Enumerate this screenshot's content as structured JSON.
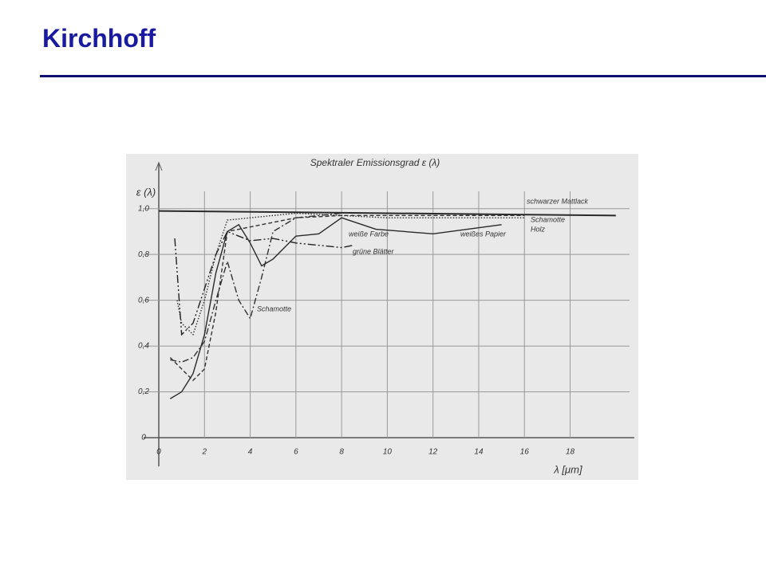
{
  "slide_title": "Kirchhoff",
  "chart_data": {
    "type": "line",
    "title": "Spektraler Emissionsgrad ε (λ)",
    "x_label": "λ [μm]",
    "y_label": "ε (λ)",
    "xlim": [
      0,
      20.6
    ],
    "ylim": [
      0,
      1.18
    ],
    "xticks": [
      0,
      2,
      4,
      6,
      8,
      10,
      12,
      14,
      16,
      18
    ],
    "yticks": [
      0,
      {
        "value": 0.2,
        "label": "0,2"
      },
      {
        "value": 0.4,
        "label": "0,4"
      },
      {
        "value": 0.6,
        "label": "0,6"
      },
      {
        "value": 0.8,
        "label": "0,8"
      },
      {
        "value": 1,
        "label": "1,0"
      }
    ],
    "grid": true,
    "series": [
      {
        "name": "schwarzer Mattlack",
        "color": "#2a2a2a",
        "dash": "",
        "x": [
          0,
          20
        ],
        "values": [
          0.99,
          0.97
        ]
      },
      {
        "name": "Schamotte",
        "color": "#333333",
        "dash": "8 3 2 3",
        "x": [
          0.5,
          1,
          1.5,
          2,
          2.5,
          3,
          3.5,
          4,
          4.5,
          5,
          6,
          8
        ],
        "values": [
          0.34,
          0.33,
          0.35,
          0.42,
          0.6,
          0.77,
          0.6,
          0.52,
          0.7,
          0.9,
          0.96,
          0.98
        ]
      },
      {
        "name": "Holz",
        "color": "#333333",
        "dash": "5 3",
        "x": [
          0.5,
          1,
          1.5,
          2,
          2.5,
          3,
          4,
          5,
          6,
          8,
          10,
          16
        ],
        "values": [
          0.35,
          0.3,
          0.25,
          0.3,
          0.55,
          0.9,
          0.92,
          0.94,
          0.96,
          0.97,
          0.97,
          0.97
        ]
      },
      {
        "name": "weiße Farbe",
        "color": "#333333",
        "dash": "1.5 2",
        "x": [
          0.8,
          1,
          1.5,
          2,
          2.5,
          3,
          4,
          5,
          6,
          8,
          10,
          16
        ],
        "values": [
          0.6,
          0.5,
          0.45,
          0.6,
          0.8,
          0.95,
          0.96,
          0.97,
          0.98,
          0.97,
          0.96,
          0.96
        ]
      },
      {
        "name": "weißes Papier",
        "color": "#2a2a2a",
        "dash": "",
        "x": [
          0.5,
          1,
          1.5,
          2,
          2.5,
          3,
          3.5,
          4,
          4.5,
          5,
          6,
          7,
          8,
          9.5,
          12,
          15
        ],
        "values": [
          0.17,
          0.2,
          0.28,
          0.45,
          0.72,
          0.9,
          0.93,
          0.85,
          0.75,
          0.78,
          0.88,
          0.89,
          0.96,
          0.91,
          0.89,
          0.93
        ]
      },
      {
        "name": "grüne Blätter",
        "color": "#222222",
        "dash": "10 3 2 3 2 3",
        "x": [
          0.7,
          1,
          1.5,
          2,
          2.5,
          3,
          3.5,
          4,
          5,
          6,
          7,
          8,
          8.5
        ],
        "values": [
          0.87,
          0.45,
          0.5,
          0.65,
          0.8,
          0.9,
          0.88,
          0.86,
          0.87,
          0.85,
          0.84,
          0.83,
          0.84
        ]
      }
    ]
  }
}
